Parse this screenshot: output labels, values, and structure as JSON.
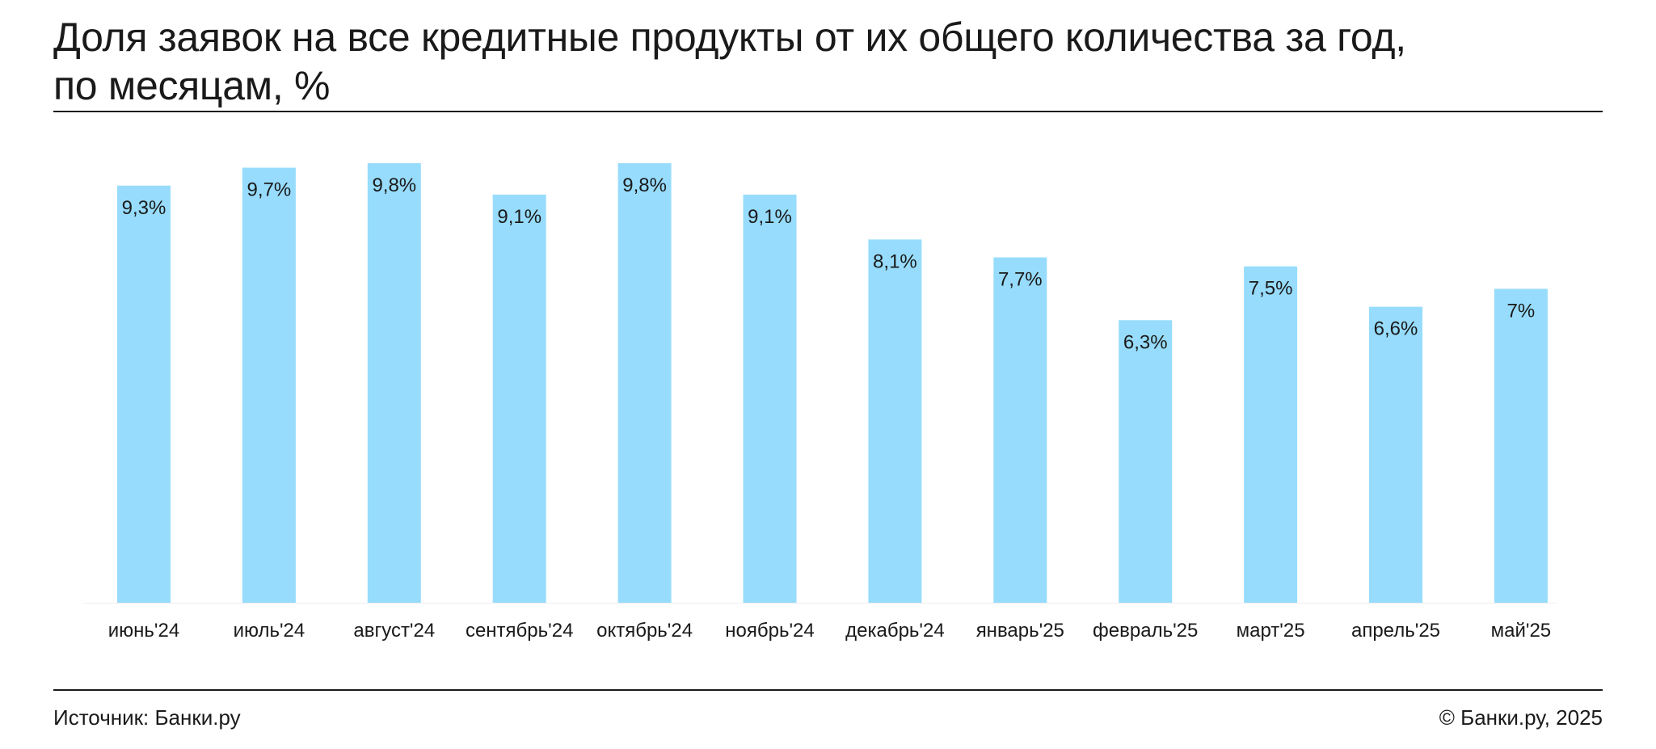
{
  "title_line1": "Доля заявок на все кредитные продукты от их общего количества за год,",
  "title_line2": "по месяцам, %",
  "source": "Источник: Банки.ру",
  "copyright": "© Банки.ру, 2025",
  "colors": {
    "bar": "#97dcfc",
    "text": "#1a1a1a",
    "baseline": "#eeeeee"
  },
  "chart_data": {
    "type": "bar",
    "categories": [
      "июнь'24",
      "июль'24",
      "август'24",
      "сентябрь'24",
      "октябрь'24",
      "ноябрь'24",
      "декабрь'24",
      "январь'25",
      "февраль'25",
      "март'25",
      "апрель'25",
      "май'25"
    ],
    "values": [
      9.3,
      9.7,
      9.8,
      9.1,
      9.8,
      9.1,
      8.1,
      7.7,
      6.3,
      7.5,
      6.6,
      7.0
    ],
    "labels": [
      "9,3%",
      "9,7%",
      "9,8%",
      "9,1%",
      "9,8%",
      "9,1%",
      "8,1%",
      "7,7%",
      "6,3%",
      "7,5%",
      "6,6%",
      "7%"
    ],
    "ylim": [
      0,
      9.8
    ],
    "xlabel": "",
    "ylabel": "",
    "grid": false
  }
}
